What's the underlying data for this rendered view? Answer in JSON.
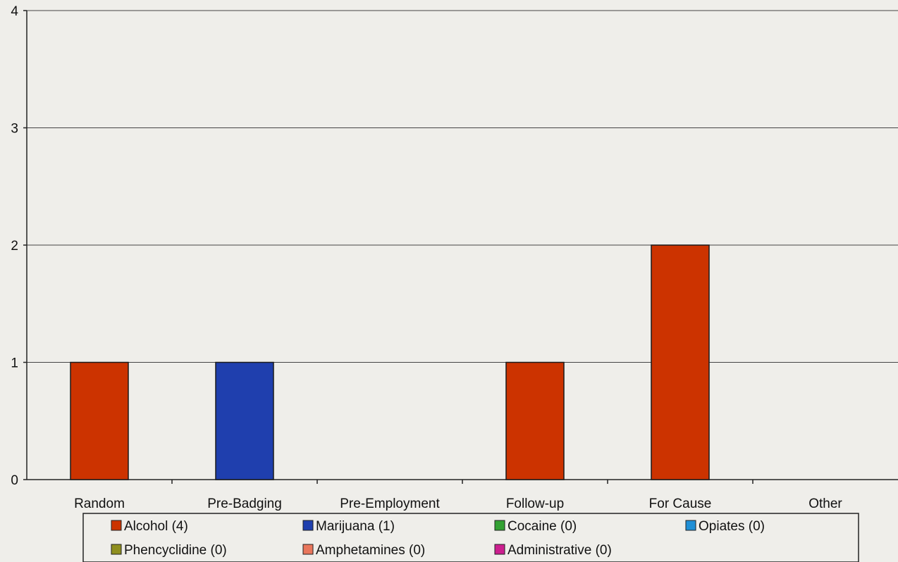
{
  "chart_data": {
    "type": "bar",
    "title": "",
    "xlabel": "",
    "ylabel": "",
    "categories": [
      "Random",
      "Pre-Badging",
      "Pre-Employment",
      "Follow-up",
      "For Cause",
      "Other"
    ],
    "ylim": [
      0,
      4
    ],
    "yticks": [
      "0",
      "1",
      "2",
      "3",
      "4"
    ],
    "grid": true,
    "legend_position": "bottom",
    "series": [
      {
        "name": "Alcohol (4)",
        "color": "#cc3300",
        "values": [
          1,
          0,
          0,
          1,
          2,
          0
        ]
      },
      {
        "name": "Marijuana (1)",
        "color": "#1f3fae",
        "values": [
          0,
          1,
          0,
          0,
          0,
          0
        ]
      },
      {
        "name": "Cocaine (0)",
        "color": "#33a133",
        "values": [
          0,
          0,
          0,
          0,
          0,
          0
        ]
      },
      {
        "name": "Opiates (0)",
        "color": "#1f8fd6",
        "values": [
          0,
          0,
          0,
          0,
          0,
          0
        ]
      },
      {
        "name": "Phencyclidine (0)",
        "color": "#8f8f1f",
        "values": [
          0,
          0,
          0,
          0,
          0,
          0
        ]
      },
      {
        "name": "Amphetamines (0)",
        "color": "#e9765c",
        "values": [
          0,
          0,
          0,
          0,
          0,
          0
        ]
      },
      {
        "name": "Administrative (0)",
        "color": "#cc1f8f",
        "values": [
          0,
          0,
          0,
          0,
          0,
          0
        ]
      }
    ]
  }
}
